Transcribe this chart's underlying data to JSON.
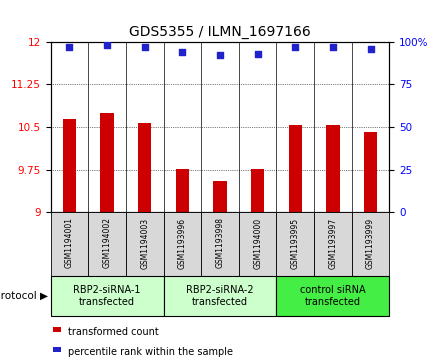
{
  "title": "GDS5355 / ILMN_1697166",
  "samples": [
    "GSM1194001",
    "GSM1194002",
    "GSM1194003",
    "GSM1193996",
    "GSM1193998",
    "GSM1194000",
    "GSM1193995",
    "GSM1193997",
    "GSM1193999"
  ],
  "bar_values": [
    10.65,
    10.75,
    10.58,
    9.76,
    9.55,
    9.77,
    10.53,
    10.53,
    10.42
  ],
  "dot_values": [
    97,
    98,
    97,
    94,
    92,
    93,
    97,
    97,
    96
  ],
  "bar_color": "#cc0000",
  "dot_color": "#2222cc",
  "ylim_left": [
    9.0,
    12.0
  ],
  "ylim_right": [
    0,
    100
  ],
  "yticks_left": [
    9.0,
    9.75,
    10.5,
    11.25,
    12.0
  ],
  "ytick_labels_left": [
    "9",
    "9.75",
    "10.5",
    "11.25",
    "12"
  ],
  "yticks_right": [
    0,
    25,
    50,
    75,
    100
  ],
  "ytick_labels_right": [
    "0",
    "25",
    "50",
    "75",
    "100%"
  ],
  "groups": [
    {
      "label": "RBP2-siRNA-1\ntransfected",
      "start": 0,
      "end": 3,
      "color": "#ccffcc"
    },
    {
      "label": "RBP2-siRNA-2\ntransfected",
      "start": 3,
      "end": 6,
      "color": "#ccffcc"
    },
    {
      "label": "control siRNA\ntransfected",
      "start": 6,
      "end": 9,
      "color": "#44ee44"
    }
  ],
  "protocol_label": "protocol",
  "legend_bar_label": "transformed count",
  "legend_dot_label": "percentile rank within the sample",
  "sample_bg_color": "#d8d8d8",
  "plot_bg_color": "#ffffff",
  "bar_width": 0.35
}
